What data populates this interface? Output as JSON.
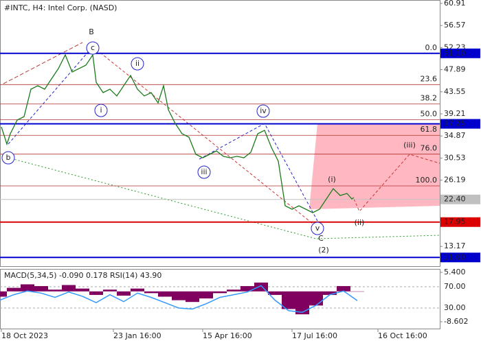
{
  "chart_data": [
    {
      "type": "line",
      "title": "#INTC, H4:  Intel Corp. (NASD)",
      "color": "#1a7a1a",
      "xlim": [
        0,
        128
      ],
      "xticks": [
        {
          "value": 0.4,
          "label": "18 Oct 2023"
        },
        {
          "value": 33,
          "label": "23 Jan 16:00"
        },
        {
          "value": 59,
          "label": "15 Apr 16:00"
        },
        {
          "value": 85,
          "label": "17 Jul 16:00"
        },
        {
          "value": 110,
          "label": "16 Oct 16:00"
        }
      ],
      "ylim": [
        9.29,
        61.58
      ],
      "yticks": [
        60.91,
        56.57,
        52.23,
        47.89,
        43.55,
        39.21,
        34.87,
        30.53,
        26.19,
        13.17
      ],
      "x": [
        0.4,
        2,
        3,
        5,
        7,
        9,
        11,
        13,
        15,
        17,
        19,
        21,
        23,
        25,
        27,
        28,
        30,
        32,
        34,
        36,
        38,
        40,
        42,
        44,
        46,
        47.6,
        49,
        51,
        53,
        55,
        57,
        59,
        61,
        63,
        65,
        67,
        69,
        71,
        73,
        75,
        77,
        79,
        81,
        83,
        85,
        87,
        89,
        91,
        93,
        95,
        97,
        99,
        101,
        102.4,
        103
      ],
      "values": [
        36.65,
        33.28,
        35.3,
        38.0,
        38.67,
        44.06,
        44.74,
        44.06,
        46.09,
        48.11,
        50.8,
        47.43,
        48.11,
        48.78,
        50.8,
        45.41,
        43.39,
        44.06,
        42.72,
        44.74,
        46.76,
        44.06,
        42.72,
        43.39,
        41.37,
        44.74,
        40.02,
        37.33,
        35.3,
        34.63,
        31.26,
        30.59,
        31.26,
        31.93,
        30.86,
        30.59,
        30.86,
        30.59,
        31.66,
        35.3,
        35.98,
        32.61,
        29.91,
        21.15,
        20.48,
        21.15,
        20.48,
        19.8,
        20.48,
        22.5,
        24.52,
        23.17,
        23.58,
        22.5,
        22.77
      ],
      "levels": [
        {
          "value": 51.1,
          "label": "51.10",
          "color": "#0000cc"
        },
        {
          "value": 37.25,
          "label": "37.25",
          "color": "#0000cc"
        },
        {
          "value": 22.4,
          "label": "22.40",
          "color": "#c0c0c0"
        },
        {
          "value": 17.95,
          "label": "17.95",
          "color": "#dd0000"
        },
        {
          "value": 11.0,
          "label": "11.00",
          "color": "#0000cc"
        }
      ],
      "fib_levels": [
        {
          "value": 51.1,
          "label": "0.0"
        },
        {
          "value": 44.96,
          "label": "23.6"
        },
        {
          "value": 41.15,
          "label": "38.2"
        },
        {
          "value": 38.08,
          "label": "50.0"
        },
        {
          "value": 35.0,
          "label": "61.8"
        },
        {
          "value": 31.3,
          "label": "76.0"
        },
        {
          "value": 25.06,
          "label": "100.0"
        }
      ],
      "annotations": [
        "B",
        "c",
        "ii",
        "i",
        "iv",
        "iii",
        "v",
        "C",
        "(2)",
        "(i)",
        "(ii)",
        "(iii)",
        "b"
      ]
    },
    {
      "type": "macd",
      "title": "MACD(5,34,5) -0.090 0.178 RSI(14) 43.90",
      "xlim": [
        0,
        128
      ],
      "x": [
        0,
        4,
        8,
        12,
        16,
        20,
        24,
        28,
        32,
        36,
        40,
        44,
        48,
        52,
        56,
        60,
        64,
        68,
        72,
        76,
        80,
        84,
        88,
        92,
        96,
        100,
        104
      ],
      "values": [
        -1.5,
        1.0,
        2.0,
        1.5,
        0.5,
        1.8,
        0.8,
        -1.0,
        0.5,
        -1.2,
        0.8,
        -0.5,
        -1.5,
        -2.5,
        -3.0,
        -2.0,
        -0.5,
        0.5,
        1.5,
        2.5,
        -1.0,
        -5.0,
        -6.5,
        -4.0,
        -1.0,
        1.5,
        -0.09
      ],
      "color": "#800060",
      "ylim": [
        -10.74,
        6.37
      ],
      "yticks": [
        {
          "value": 5.4,
          "label": "5.400"
        },
        {
          "value": -8.602,
          "label": "-8.602"
        }
      ],
      "y2lim": [
        -10,
        103.5
      ],
      "y2ticks": [
        {
          "value": 70,
          "label": "70.00"
        },
        {
          "value": 30,
          "label": "30.00"
        }
      ],
      "series": [
        {
          "color": "#3399ff",
          "axis": "y2",
          "values": [
            45,
            55,
            62,
            58,
            50,
            60,
            52,
            40,
            55,
            42,
            58,
            50,
            40,
            30,
            28,
            38,
            50,
            55,
            60,
            72,
            45,
            25,
            22,
            35,
            55,
            62,
            43.9
          ]
        }
      ]
    }
  ]
}
